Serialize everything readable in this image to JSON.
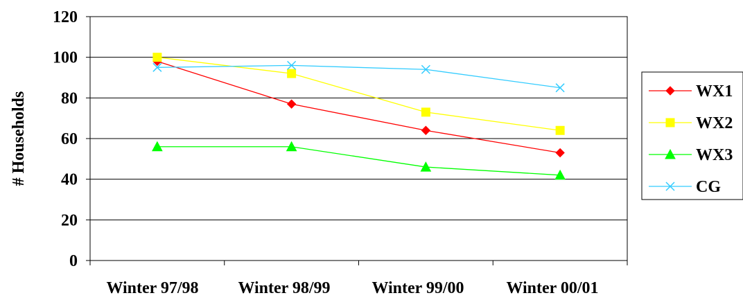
{
  "chart_data": {
    "type": "line",
    "title": "",
    "xlabel": "",
    "ylabel": "# Households",
    "ylim": [
      0,
      120
    ],
    "y_ticks": [
      0,
      20,
      40,
      60,
      80,
      100,
      120
    ],
    "grid": "horizontal",
    "legend_position": "right",
    "categories": [
      "Winter 97/98",
      "Winter 98/99",
      "Winter 99/00",
      "Winter 00/01"
    ],
    "series": [
      {
        "name": "WX1",
        "color": "#ff0000",
        "marker": "diamond",
        "values": [
          98,
          77,
          64,
          53
        ]
      },
      {
        "name": "WX2",
        "color": "#ffff00",
        "marker": "square",
        "values": [
          100,
          92,
          73,
          64
        ]
      },
      {
        "name": "WX3",
        "color": "#00ff00",
        "marker": "triangle",
        "values": [
          56,
          56,
          46,
          42
        ]
      },
      {
        "name": "CG",
        "color": "#33ccff",
        "marker": "x",
        "values": [
          95,
          96,
          94,
          85
        ]
      }
    ]
  }
}
